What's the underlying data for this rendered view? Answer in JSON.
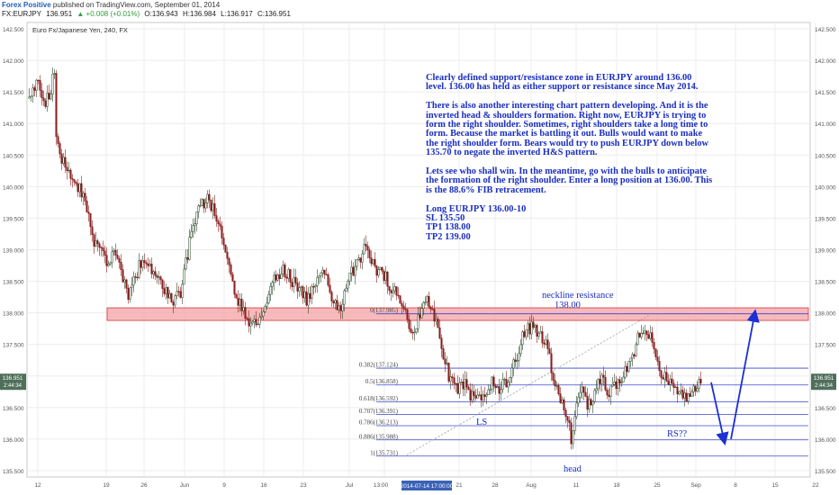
{
  "header": {
    "brand": "Forex Positive",
    "published": "published on TradingView.com, September 01, 2014",
    "symbol": "FX:EURJPY",
    "last": "136.951",
    "change": "▲ +0.008 (+0.01%)",
    "ohlc": [
      "O:136.943",
      "H:136.984",
      "L:136.917",
      "C:136.951"
    ]
  },
  "chart_title": "Euro Fx/Japanese Yen, 240, FX",
  "annotation": {
    "paragraphs": [
      "Clearly defined support/resistance zone in EURJPY around 136.00 level. 136.00 has held as either support or resistance since May 2014.",
      "There is also another interesting chart pattern developing. And it is the inverted head & shoulders formation. Right now, EURJPY is trying to form the right shoulder. Sometimes, right shoulders take a long time to form. Because the market is battling it out. Bulls would want to make the right shoulder form. Bears would try to push EURJPY down below 135.70 to negate the inverted H&S pattern.",
      "Lets see who shall win. In the meantime, go with the bulls to anticipate the formation of the right shoulder. Enter a long position at 136.00. This is the 88.6% FIB retracement."
    ],
    "trade": [
      "Long EURJPY 136.00-10",
      "SL 135.50",
      "TP1 138.00",
      "TP2 139.00"
    ]
  },
  "labels": {
    "neckline": "neckline resistance",
    "neckline_price": "138.00",
    "ls": "LS",
    "head": "head",
    "rs": "RS??"
  },
  "price_tag": {
    "value": "136.951",
    "countdown": "2:44:34"
  },
  "crosshair_date": "2014-07-14 17:00:00",
  "colors": {
    "candle_up": "#2c4a2c",
    "candle_down": "#8a1f1f",
    "zone_fill": "#f4a3a6",
    "fib": "#3a46cc",
    "annotation": "#1a2fbf"
  },
  "chart_data": {
    "type": "candlestick",
    "timeframe": "240",
    "ylim": [
      135.4,
      142.6
    ],
    "y_ticks": [
      135.5,
      136.0,
      136.5,
      137.0,
      137.5,
      138.0,
      138.5,
      139.0,
      139.5,
      140.0,
      140.5,
      141.0,
      141.5,
      142.0,
      142.5
    ],
    "y_tick_labels": [
      "135.500",
      "136.000",
      "136.500",
      "137.000",
      "137.500",
      "138.000",
      "138.500",
      "139.000",
      "139.500",
      "140.000",
      "140.500",
      "141.000",
      "141.500",
      "142.000",
      "142.500"
    ],
    "x_tick_labels": [
      "12",
      "19",
      "26",
      "Jun",
      "9",
      "16",
      "23",
      "Jul",
      "13:00",
      "21",
      "28",
      "Aug",
      "11",
      "18",
      "25",
      "Sep",
      "8",
      "15",
      "22"
    ],
    "x_tick_index": [
      42,
      118,
      160,
      205,
      249,
      293,
      337,
      388,
      427,
      510,
      550,
      590,
      640,
      685,
      730,
      773,
      817,
      861,
      906
    ],
    "x_ratio_note": "",
    "anchors": [
      [
        32,
        141.4
      ],
      [
        40,
        141.7
      ],
      [
        48,
        141.3
      ],
      [
        55,
        141.5
      ],
      [
        60,
        141.8
      ],
      [
        62,
        140.9
      ],
      [
        66,
        140.5
      ],
      [
        75,
        140.3
      ],
      [
        84,
        140.0
      ],
      [
        92,
        139.9
      ],
      [
        98,
        139.5
      ],
      [
        104,
        139.1
      ],
      [
        110,
        139.0
      ],
      [
        118,
        138.8
      ],
      [
        126,
        139.0
      ],
      [
        134,
        138.6
      ],
      [
        142,
        138.3
      ],
      [
        150,
        138.6
      ],
      [
        160,
        138.9
      ],
      [
        170,
        138.6
      ],
      [
        180,
        138.4
      ],
      [
        190,
        138.2
      ],
      [
        200,
        138.3
      ],
      [
        210,
        139.1
      ],
      [
        220,
        139.7
      ],
      [
        230,
        139.8
      ],
      [
        240,
        139.5
      ],
      [
        250,
        139.0
      ],
      [
        256,
        138.6
      ],
      [
        264,
        138.2
      ],
      [
        272,
        138.0
      ],
      [
        280,
        137.8
      ],
      [
        288,
        137.9
      ],
      [
        296,
        138.2
      ],
      [
        304,
        138.5
      ],
      [
        312,
        138.7
      ],
      [
        320,
        138.6
      ],
      [
        330,
        138.4
      ],
      [
        340,
        138.2
      ],
      [
        350,
        138.5
      ],
      [
        360,
        138.6
      ],
      [
        370,
        138.2
      ],
      [
        378,
        138.1
      ],
      [
        388,
        138.6
      ],
      [
        396,
        138.8
      ],
      [
        404,
        139.0
      ],
      [
        410,
        138.9
      ],
      [
        418,
        138.7
      ],
      [
        426,
        138.6
      ],
      [
        434,
        138.4
      ],
      [
        444,
        138.2
      ],
      [
        452,
        137.9
      ],
      [
        460,
        137.7
      ],
      [
        468,
        138.1
      ],
      [
        476,
        138.2
      ],
      [
        484,
        137.8
      ],
      [
        490,
        137.4
      ],
      [
        498,
        137.0
      ],
      [
        506,
        136.8
      ],
      [
        514,
        136.9
      ],
      [
        522,
        136.7
      ],
      [
        530,
        136.6
      ],
      [
        538,
        136.6
      ],
      [
        546,
        136.9
      ],
      [
        556,
        136.8
      ],
      [
        566,
        137.0
      ],
      [
        574,
        137.3
      ],
      [
        582,
        137.7
      ],
      [
        590,
        137.8
      ],
      [
        598,
        137.7
      ],
      [
        606,
        137.5
      ],
      [
        614,
        137.0
      ],
      [
        622,
        136.6
      ],
      [
        630,
        136.3
      ],
      [
        634,
        136.0
      ],
      [
        640,
        136.6
      ],
      [
        646,
        136.8
      ],
      [
        652,
        136.5
      ],
      [
        660,
        136.7
      ],
      [
        668,
        137.0
      ],
      [
        676,
        136.7
      ],
      [
        684,
        136.9
      ],
      [
        692,
        137.0
      ],
      [
        700,
        137.2
      ],
      [
        708,
        137.6
      ],
      [
        716,
        137.8
      ],
      [
        724,
        137.6
      ],
      [
        732,
        137.1
      ],
      [
        740,
        137.0
      ],
      [
        748,
        136.8
      ],
      [
        756,
        136.8
      ],
      [
        762,
        136.6
      ],
      [
        768,
        136.7
      ],
      [
        772,
        136.8
      ],
      [
        778,
        136.9
      ]
    ],
    "zone": {
      "label": "0(137.985)",
      "low": 137.88,
      "high": 138.08,
      "x_start": 119,
      "x_end": 898
    },
    "fib_levels": [
      {
        "ratio": "0",
        "label": "0(137.985)",
        "value": 137.985
      },
      {
        "ratio": "0.382",
        "label": "0.382(137.124)",
        "value": 137.124
      },
      {
        "ratio": "0.5",
        "label": "0.5(136.858)",
        "value": 136.858
      },
      {
        "ratio": "0.618",
        "label": "0.618(136.592)",
        "value": 136.592
      },
      {
        "ratio": "0.707",
        "label": "0.707(136.391)",
        "value": 136.391
      },
      {
        "ratio": "0.786",
        "label": "0.786(136.213)",
        "value": 136.213
      },
      {
        "ratio": "0.886",
        "label": "0.886(135.988)",
        "value": 135.988
      },
      {
        "ratio": "1",
        "label": "1(135.731)",
        "value": 135.731
      }
    ],
    "fib_x_start": 418,
    "fib_x_end": 898,
    "trendline": [
      [
        452,
        135.75
      ],
      [
        722,
        137.97
      ]
    ],
    "forecast_path": [
      [
        790,
        136.9
      ],
      [
        804,
        136.0
      ],
      [
        812,
        136.0
      ],
      [
        838,
        137.96
      ]
    ],
    "current_price": 136.951
  }
}
